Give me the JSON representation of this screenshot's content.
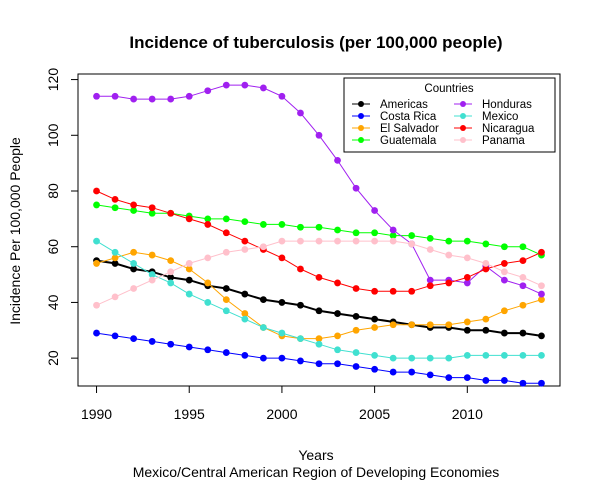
{
  "chart_data": {
    "type": "line",
    "title": "Incidence of tuberculosis (per 100,000 people)",
    "xlabel": "Years",
    "subtitle": "Mexico/Central American Region of Developing Economies",
    "ylabel": "Incidence Per 100,000 People",
    "xlim": [
      1989,
      2015
    ],
    "ylim": [
      10,
      122
    ],
    "x_ticks": [
      1990,
      1995,
      2000,
      2005,
      2010
    ],
    "y_ticks": [
      20,
      40,
      60,
      80,
      100,
      120
    ],
    "grid": false,
    "legend": {
      "title": "Countries",
      "placement": "top-right"
    },
    "x": [
      1990,
      1991,
      1992,
      1993,
      1994,
      1995,
      1996,
      1997,
      1998,
      1999,
      2000,
      2001,
      2002,
      2003,
      2004,
      2005,
      2006,
      2007,
      2008,
      2009,
      2010,
      2011,
      2012,
      2013,
      2014
    ],
    "series": [
      {
        "name": "Americas",
        "color": "#000000",
        "values": [
          55,
          54,
          52,
          51,
          49,
          48,
          46,
          45,
          43,
          41,
          40,
          39,
          37,
          36,
          35,
          34,
          33,
          32,
          31,
          31,
          30,
          30,
          29,
          29,
          28
        ]
      },
      {
        "name": "Costa Rica",
        "color": "#0000ff",
        "values": [
          29,
          28,
          27,
          26,
          25,
          24,
          23,
          22,
          21,
          20,
          20,
          19,
          18,
          18,
          17,
          16,
          15,
          15,
          14,
          13,
          13,
          12,
          12,
          11,
          11
        ]
      },
      {
        "name": "El Salvador",
        "color": "#ffa500",
        "values": [
          54,
          56,
          58,
          57,
          55,
          52,
          47,
          41,
          36,
          31,
          28,
          27,
          27,
          28,
          30,
          31,
          32,
          32,
          32,
          32,
          33,
          34,
          37,
          39,
          41
        ]
      },
      {
        "name": "Guatemala",
        "color": "#00ff00",
        "values": [
          75,
          74,
          73,
          72,
          72,
          71,
          70,
          70,
          69,
          68,
          68,
          67,
          67,
          66,
          65,
          65,
          64,
          64,
          63,
          62,
          62,
          61,
          60,
          60,
          57
        ]
      },
      {
        "name": "Honduras",
        "color": "#a020f0",
        "values": [
          114,
          114,
          113,
          113,
          113,
          114,
          116,
          118,
          118,
          117,
          114,
          108,
          100,
          91,
          81,
          73,
          66,
          61,
          48,
          48,
          47,
          53,
          48,
          46,
          43
        ]
      },
      {
        "name": "Mexico",
        "color": "#40e0d0",
        "values": [
          62,
          58,
          54,
          50,
          47,
          43,
          40,
          37,
          34,
          31,
          29,
          27,
          25,
          23,
          22,
          21,
          20,
          20,
          20,
          20,
          21,
          21,
          21,
          21,
          21
        ]
      },
      {
        "name": "Nicaragua",
        "color": "#ff0000",
        "values": [
          80,
          77,
          75,
          74,
          72,
          70,
          68,
          65,
          62,
          59,
          56,
          52,
          49,
          47,
          45,
          44,
          44,
          44,
          46,
          47,
          49,
          52,
          54,
          55,
          58
        ]
      },
      {
        "name": "Panama",
        "color": "#ffc0cb",
        "values": [
          39,
          42,
          45,
          48,
          51,
          54,
          56,
          58,
          59,
          60,
          62,
          62,
          62,
          62,
          62,
          62,
          62,
          61,
          59,
          57,
          56,
          54,
          51,
          49,
          46
        ]
      }
    ]
  }
}
